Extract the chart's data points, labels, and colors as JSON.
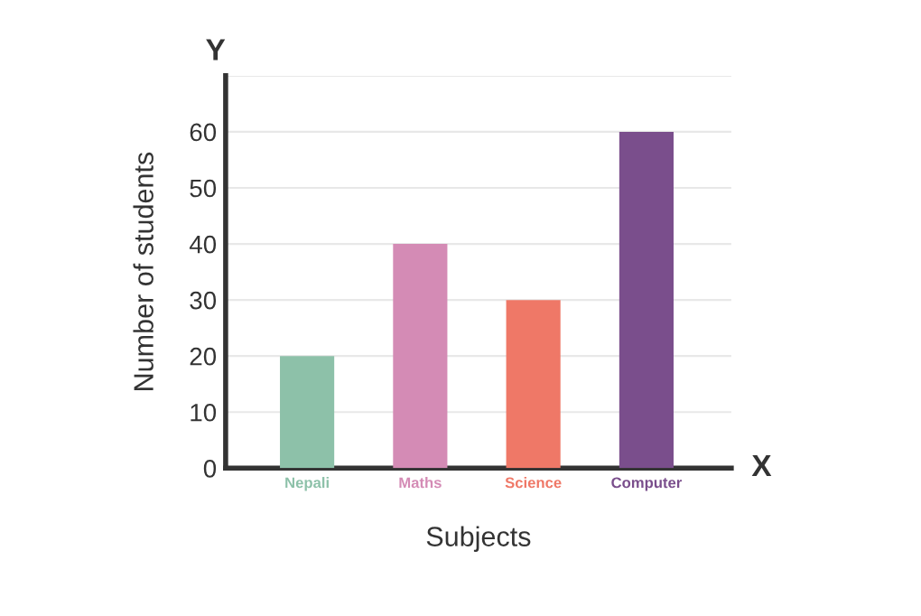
{
  "chart_data": {
    "type": "bar",
    "xlabel": "Subjects",
    "ylabel": "Number of students",
    "categories": [
      "Nepali",
      "Maths",
      "Science",
      "Computer"
    ],
    "values": [
      20,
      40,
      30,
      60
    ],
    "colors": [
      "#8dc1a9",
      "#d48bb5",
      "#ef7867",
      "#7a4e8c"
    ],
    "ylim": [
      0,
      70
    ],
    "yticks": [
      0,
      10,
      20,
      30,
      40,
      50,
      60,
      {
        "value": 70,
        "label": null
      }
    ],
    "grid": "y",
    "annotations": [
      "Y",
      "X"
    ]
  }
}
